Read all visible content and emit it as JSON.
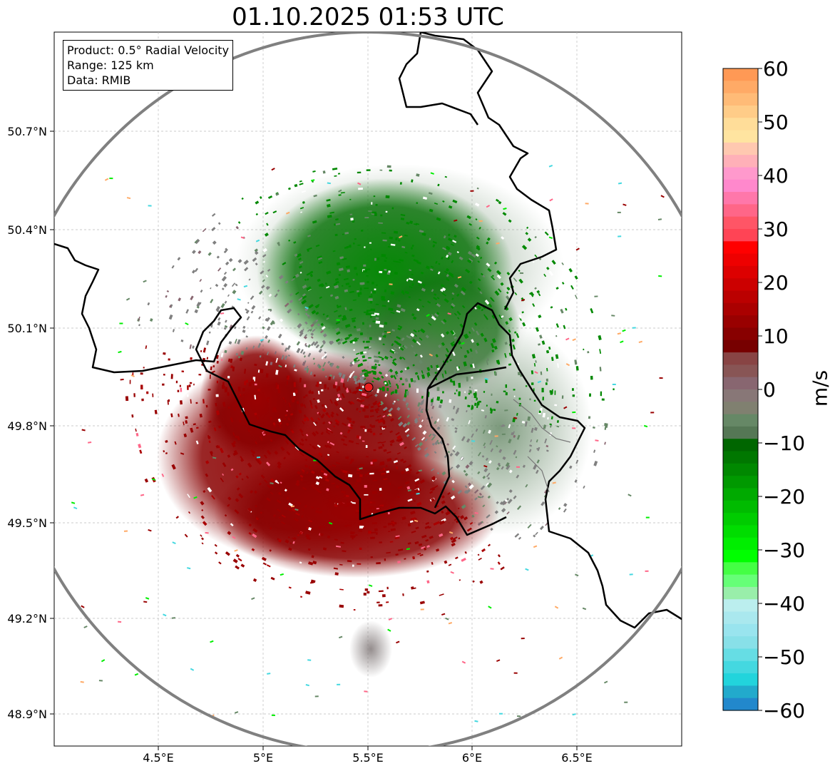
{
  "title": "01.10.2025 01:53 UTC",
  "info": {
    "product": "Product: 0.5° Radial Velocity",
    "range": "Range: 125 km",
    "source": "Data: RMIB"
  },
  "axes": {
    "lat_labels": [
      "50.7°N",
      "50.4°N",
      "50.1°N",
      "49.8°N",
      "49.5°N",
      "49.2°N",
      "48.9°N"
    ],
    "lon_labels": [
      "4.5°E",
      "5°E",
      "5.5°E",
      "6°E",
      "6.5°E"
    ]
  },
  "colorbar": {
    "unit": "m/s",
    "ticks": [
      "60",
      "50",
      "40",
      "30",
      "20",
      "10",
      "0",
      "−10",
      "−20",
      "−30",
      "−40",
      "−50",
      "−60"
    ],
    "colors": [
      "#ff9955",
      "#ffaa66",
      "#ffbb77",
      "#ffcc88",
      "#ffdd99",
      "#ffe4a0",
      "#ffc8b0",
      "#ffb0b8",
      "#ff99cc",
      "#ff88cc",
      "#ff77aa",
      "#ff6688",
      "#ff5566",
      "#ff4455",
      "#ff0000",
      "#ee0000",
      "#dd0000",
      "#cc0000",
      "#bb0000",
      "#aa0000",
      "#990000",
      "#880000",
      "#770000",
      "#884444",
      "#885555",
      "#886670",
      "#887777",
      "#808070",
      "#668866",
      "#557755",
      "#006600",
      "#007700",
      "#008800",
      "#009900",
      "#00aa00",
      "#00bb00",
      "#00cc00",
      "#00dd00",
      "#00ee00",
      "#00ff00",
      "#44ff44",
      "#66ff77",
      "#99eeaa",
      "#bbeeee",
      "#aae8ee",
      "#99e4ee",
      "#88e0e8",
      "#66dde4",
      "#44d8e0",
      "#22d4dc",
      "#22aacc",
      "#2288cc"
    ]
  },
  "map_data": {
    "radar_site": {
      "lon": 5.505,
      "lat": 49.915
    },
    "lon_range": [
      4.0,
      7.0
    ],
    "lat_range": [
      48.8,
      51.0
    ],
    "range_km": 125,
    "dominant_colors": {
      "approaching": "#008800",
      "receding": "#990000",
      "near_zero": "#808080"
    }
  }
}
